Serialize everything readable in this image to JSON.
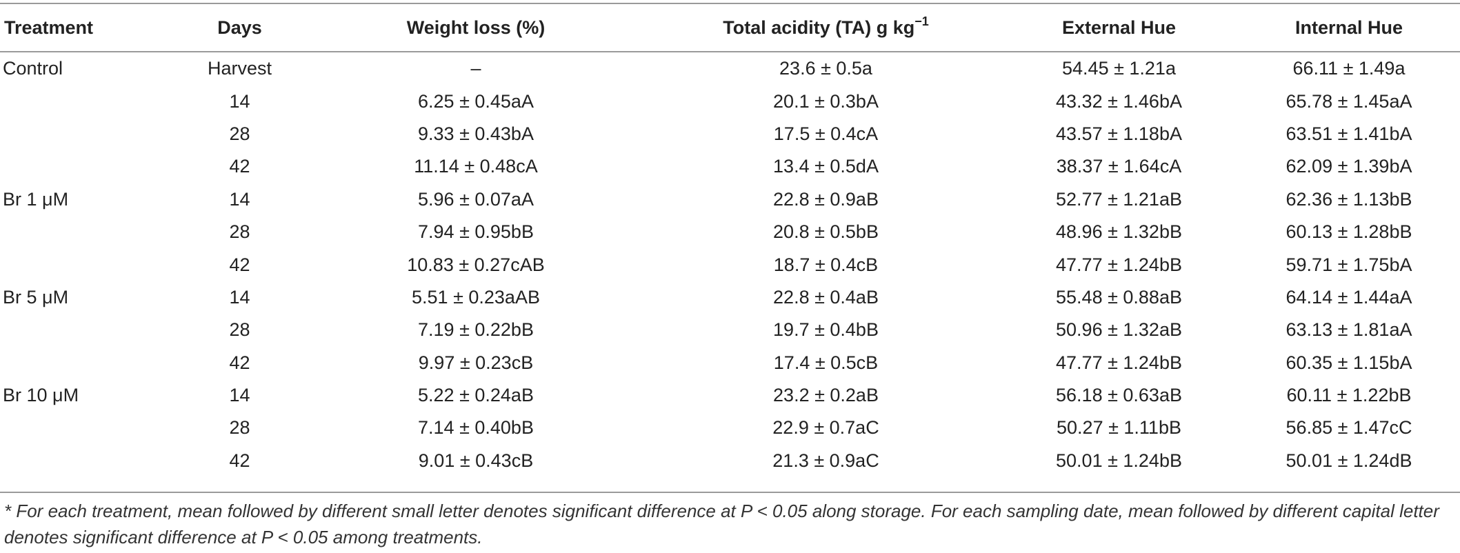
{
  "table": {
    "headers": {
      "treatment": "Treatment",
      "days": "Days",
      "weight_loss": "Weight loss (%)",
      "ta_prefix": "Total acidity (TA) g kg",
      "ta_sup": "−1",
      "external_hue": "External Hue",
      "internal_hue": "Internal Hue"
    },
    "rows": [
      {
        "treatment": "Control",
        "days": "Harvest",
        "weight_loss": "–",
        "ta": "23.6 ± 0.5a",
        "external_hue": "54.45 ± 1.21a",
        "internal_hue": "66.11 ± 1.49a"
      },
      {
        "treatment": "",
        "days": "14",
        "weight_loss": "6.25 ± 0.45aA",
        "ta": "20.1 ± 0.3bA",
        "external_hue": "43.32 ± 1.46bA",
        "internal_hue": "65.78 ± 1.45aA"
      },
      {
        "treatment": "",
        "days": "28",
        "weight_loss": "9.33 ± 0.43bA",
        "ta": "17.5 ± 0.4cA",
        "external_hue": "43.57 ± 1.18bA",
        "internal_hue": "63.51 ± 1.41bA"
      },
      {
        "treatment": "",
        "days": "42",
        "weight_loss": "11.14 ± 0.48cA",
        "ta": "13.4 ± 0.5dA",
        "external_hue": "38.37 ± 1.64cA",
        "internal_hue": "62.09 ± 1.39bA"
      },
      {
        "treatment": "Br 1 μM",
        "days": "14",
        "weight_loss": "5.96 ± 0.07aA",
        "ta": "22.8 ± 0.9aB",
        "external_hue": "52.77 ± 1.21aB",
        "internal_hue": "62.36 ± 1.13bB"
      },
      {
        "treatment": "",
        "days": "28",
        "weight_loss": "7.94 ± 0.95bB",
        "ta": "20.8 ± 0.5bB",
        "external_hue": "48.96 ± 1.32bB",
        "internal_hue": "60.13 ± 1.28bB"
      },
      {
        "treatment": "",
        "days": "42",
        "weight_loss": "10.83 ± 0.27cAB",
        "ta": "18.7 ± 0.4cB",
        "external_hue": "47.77 ± 1.24bB",
        "internal_hue": "59.71 ± 1.75bA"
      },
      {
        "treatment": "Br 5 μM",
        "days": "14",
        "weight_loss": "5.51 ± 0.23aAB",
        "ta": "22.8 ± 0.4aB",
        "external_hue": "55.48 ± 0.88aB",
        "internal_hue": "64.14 ± 1.44aA"
      },
      {
        "treatment": "",
        "days": "28",
        "weight_loss": "7.19 ± 0.22bB",
        "ta": "19.7 ± 0.4bB",
        "external_hue": "50.96 ± 1.32aB",
        "internal_hue": "63.13 ± 1.81aA"
      },
      {
        "treatment": "",
        "days": "42",
        "weight_loss": "9.97 ± 0.23cB",
        "ta": "17.4 ± 0.5cB",
        "external_hue": "47.77 ± 1.24bB",
        "internal_hue": "60.35 ± 1.15bA"
      },
      {
        "treatment": "Br 10 μM",
        "days": "14",
        "weight_loss": "5.22 ± 0.24aB",
        "ta": "23.2 ± 0.2aB",
        "external_hue": "56.18 ± 0.63aB",
        "internal_hue": "60.11 ± 1.22bB"
      },
      {
        "treatment": "",
        "days": "28",
        "weight_loss": "7.14 ± 0.40bB",
        "ta": "22.9 ± 0.7aC",
        "external_hue": "50.27 ± 1.11bB",
        "internal_hue": "56.85 ± 1.47cC"
      },
      {
        "treatment": "",
        "days": "42",
        "weight_loss": "9.01 ± 0.43cB",
        "ta": "21.3 ± 0.9aC",
        "external_hue": "50.01 ± 1.24bB",
        "internal_hue": "50.01 ± 1.24dB"
      }
    ]
  },
  "footnote": "* For each treatment, mean followed by different small letter denotes significant difference at P < 0.05 along storage. For each sampling date, mean followed by different capital letter denotes significant difference at P < 0.05 among treatments."
}
